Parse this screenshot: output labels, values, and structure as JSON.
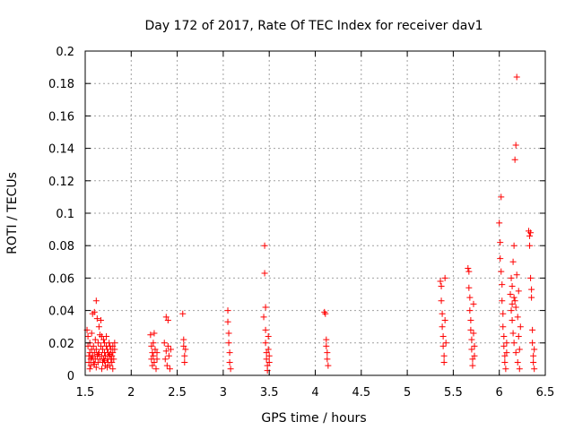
{
  "chart_data": {
    "type": "scatter",
    "title": "Day 172 of 2017, Rate Of TEC Index for receiver dav1",
    "xlabel": "GPS time / hours",
    "ylabel": "ROTI / TECUs",
    "xlim": [
      1.5,
      6.5
    ],
    "ylim": [
      0,
      0.2
    ],
    "grid": true,
    "marker": "+",
    "color": "#ff0000",
    "xticks": [
      1.5,
      2,
      2.5,
      3,
      3.5,
      4,
      4.5,
      5,
      5.5,
      6,
      6.5
    ],
    "xtick_labels": [
      "1.5",
      "2",
      "2.5",
      "3",
      "3.5",
      "4",
      "4.5",
      "5",
      "5.5",
      "6",
      "6.5"
    ],
    "yticks": [
      0,
      0.02,
      0.04,
      0.06,
      0.08,
      0.1,
      0.12,
      0.14,
      0.16,
      0.18,
      0.2
    ],
    "ytick_labels": [
      "0",
      "0.02",
      "0.04",
      "0.06",
      "0.08",
      "0.1",
      "0.12",
      "0.14",
      "0.16",
      "0.18",
      "0.2"
    ],
    "series": [
      {
        "name": "dav1",
        "points": [
          [
            1.52,
            0.028
          ],
          [
            1.53,
            0.024
          ],
          [
            1.53,
            0.018
          ],
          [
            1.54,
            0.012
          ],
          [
            1.54,
            0.008
          ],
          [
            1.55,
            0.02
          ],
          [
            1.55,
            0.014
          ],
          [
            1.56,
            0.01
          ],
          [
            1.56,
            0.006
          ],
          [
            1.57,
            0.016
          ],
          [
            1.57,
            0.026
          ],
          [
            1.58,
            0.012
          ],
          [
            1.58,
            0.038
          ],
          [
            1.59,
            0.008
          ],
          [
            1.59,
            0.018
          ],
          [
            1.6,
            0.039
          ],
          [
            1.6,
            0.014
          ],
          [
            1.61,
            0.01
          ],
          [
            1.61,
            0.022
          ],
          [
            1.62,
            0.046
          ],
          [
            1.62,
            0.016
          ],
          [
            1.63,
            0.035
          ],
          [
            1.63,
            0.012
          ],
          [
            1.64,
            0.02
          ],
          [
            1.64,
            0.008
          ],
          [
            1.65,
            0.03
          ],
          [
            1.65,
            0.014
          ],
          [
            1.66,
            0.025
          ],
          [
            1.66,
            0.01
          ],
          [
            1.67,
            0.034
          ],
          [
            1.67,
            0.018
          ],
          [
            1.68,
            0.012
          ],
          [
            1.68,
            0.024
          ],
          [
            1.69,
            0.008
          ],
          [
            1.69,
            0.016
          ],
          [
            1.7,
            0.022
          ],
          [
            1.7,
            0.01
          ],
          [
            1.71,
            0.014
          ],
          [
            1.71,
            0.02
          ],
          [
            1.72,
            0.006
          ],
          [
            1.72,
            0.012
          ],
          [
            1.73,
            0.018
          ],
          [
            1.73,
            0.024
          ],
          [
            1.74,
            0.01
          ],
          [
            1.74,
            0.016
          ],
          [
            1.75,
            0.008
          ],
          [
            1.75,
            0.014
          ],
          [
            1.76,
            0.02
          ],
          [
            1.76,
            0.012
          ],
          [
            1.77,
            0.018
          ],
          [
            1.77,
            0.006
          ],
          [
            1.78,
            0.01
          ],
          [
            1.78,
            0.016
          ],
          [
            1.79,
            0.012
          ],
          [
            1.79,
            0.008
          ],
          [
            1.8,
            0.014
          ],
          [
            1.8,
            0.018
          ],
          [
            1.81,
            0.01
          ],
          [
            1.82,
            0.016
          ],
          [
            1.82,
            0.02
          ],
          [
            1.55,
            0.004
          ],
          [
            1.62,
            0.005
          ],
          [
            1.68,
            0.004
          ],
          [
            1.74,
            0.005
          ],
          [
            1.8,
            0.004
          ],
          [
            1.57,
            0.011
          ],
          [
            1.64,
            0.013
          ],
          [
            1.71,
            0.009
          ],
          [
            1.77,
            0.013
          ],
          [
            1.6,
            0.007
          ],
          [
            2.21,
            0.025
          ],
          [
            2.22,
            0.018
          ],
          [
            2.22,
            0.01
          ],
          [
            2.23,
            0.014
          ],
          [
            2.23,
            0.006
          ],
          [
            2.24,
            0.02
          ],
          [
            2.24,
            0.012
          ],
          [
            2.25,
            0.026
          ],
          [
            2.25,
            0.008
          ],
          [
            2.26,
            0.016
          ],
          [
            2.27,
            0.004
          ],
          [
            2.28,
            0.014
          ],
          [
            2.28,
            0.01
          ],
          [
            2.36,
            0.02
          ],
          [
            2.37,
            0.01
          ],
          [
            2.38,
            0.036
          ],
          [
            2.38,
            0.015
          ],
          [
            2.39,
            0.006
          ],
          [
            2.4,
            0.034
          ],
          [
            2.4,
            0.018
          ],
          [
            2.41,
            0.012
          ],
          [
            2.42,
            0.004
          ],
          [
            2.43,
            0.016
          ],
          [
            2.56,
            0.038
          ],
          [
            2.57,
            0.022
          ],
          [
            2.57,
            0.018
          ],
          [
            2.58,
            0.012
          ],
          [
            2.58,
            0.008
          ],
          [
            2.59,
            0.016
          ],
          [
            3.05,
            0.04
          ],
          [
            3.05,
            0.033
          ],
          [
            3.06,
            0.026
          ],
          [
            3.06,
            0.02
          ],
          [
            3.07,
            0.014
          ],
          [
            3.07,
            0.008
          ],
          [
            3.08,
            0.004
          ],
          [
            3.44,
            0.036
          ],
          [
            3.45,
            0.08
          ],
          [
            3.45,
            0.063
          ],
          [
            3.46,
            0.042
          ],
          [
            3.46,
            0.028
          ],
          [
            3.46,
            0.02
          ],
          [
            3.47,
            0.014
          ],
          [
            3.47,
            0.01
          ],
          [
            3.48,
            0.006
          ],
          [
            3.48,
            0.003
          ],
          [
            3.49,
            0.024
          ],
          [
            3.49,
            0.016
          ],
          [
            3.5,
            0.012
          ],
          [
            3.5,
            0.008
          ],
          [
            4.1,
            0.039
          ],
          [
            4.11,
            0.038
          ],
          [
            4.12,
            0.022
          ],
          [
            4.12,
            0.018
          ],
          [
            4.13,
            0.014
          ],
          [
            4.13,
            0.01
          ],
          [
            4.14,
            0.006
          ],
          [
            5.36,
            0.058
          ],
          [
            5.37,
            0.055
          ],
          [
            5.37,
            0.046
          ],
          [
            5.38,
            0.038
          ],
          [
            5.38,
            0.03
          ],
          [
            5.39,
            0.024
          ],
          [
            5.39,
            0.018
          ],
          [
            5.4,
            0.012
          ],
          [
            5.4,
            0.008
          ],
          [
            5.41,
            0.06
          ],
          [
            5.41,
            0.034
          ],
          [
            5.42,
            0.02
          ],
          [
            5.66,
            0.066
          ],
          [
            5.67,
            0.064
          ],
          [
            5.67,
            0.054
          ],
          [
            5.68,
            0.048
          ],
          [
            5.68,
            0.04
          ],
          [
            5.69,
            0.034
          ],
          [
            5.69,
            0.028
          ],
          [
            5.7,
            0.022
          ],
          [
            5.7,
            0.016
          ],
          [
            5.71,
            0.01
          ],
          [
            5.71,
            0.006
          ],
          [
            5.72,
            0.044
          ],
          [
            5.72,
            0.026
          ],
          [
            5.73,
            0.018
          ],
          [
            5.73,
            0.012
          ],
          [
            6.0,
            0.094
          ],
          [
            6.01,
            0.082
          ],
          [
            6.01,
            0.072
          ],
          [
            6.02,
            0.11
          ],
          [
            6.02,
            0.064
          ],
          [
            6.03,
            0.056
          ],
          [
            6.03,
            0.046
          ],
          [
            6.04,
            0.038
          ],
          [
            6.04,
            0.03
          ],
          [
            6.05,
            0.024
          ],
          [
            6.05,
            0.018
          ],
          [
            6.06,
            0.012
          ],
          [
            6.06,
            0.008
          ],
          [
            6.07,
            0.004
          ],
          [
            6.08,
            0.02
          ],
          [
            6.08,
            0.014
          ],
          [
            6.12,
            0.05
          ],
          [
            6.13,
            0.06
          ],
          [
            6.13,
            0.04
          ],
          [
            6.14,
            0.055
          ],
          [
            6.14,
            0.034
          ],
          [
            6.15,
            0.07
          ],
          [
            6.15,
            0.026
          ],
          [
            6.16,
            0.08
          ],
          [
            6.16,
            0.02
          ],
          [
            6.17,
            0.133
          ],
          [
            6.17,
            0.046
          ],
          [
            6.18,
            0.142
          ],
          [
            6.18,
            0.014
          ],
          [
            6.19,
            0.184
          ],
          [
            6.19,
            0.062
          ],
          [
            6.2,
            0.036
          ],
          [
            6.2,
            0.008
          ],
          [
            6.21,
            0.052
          ],
          [
            6.21,
            0.024
          ],
          [
            6.22,
            0.016
          ],
          [
            6.22,
            0.004
          ],
          [
            6.23,
            0.03
          ],
          [
            6.14,
            0.044
          ],
          [
            6.16,
            0.048
          ],
          [
            6.18,
            0.042
          ],
          [
            6.32,
            0.089
          ],
          [
            6.33,
            0.086
          ],
          [
            6.33,
            0.08
          ],
          [
            6.34,
            0.088
          ],
          [
            6.34,
            0.06
          ],
          [
            6.35,
            0.053
          ],
          [
            6.35,
            0.048
          ],
          [
            6.36,
            0.028
          ],
          [
            6.36,
            0.02
          ],
          [
            6.37,
            0.012
          ],
          [
            6.37,
            0.008
          ],
          [
            6.38,
            0.004
          ],
          [
            6.38,
            0.016
          ]
        ]
      }
    ]
  }
}
